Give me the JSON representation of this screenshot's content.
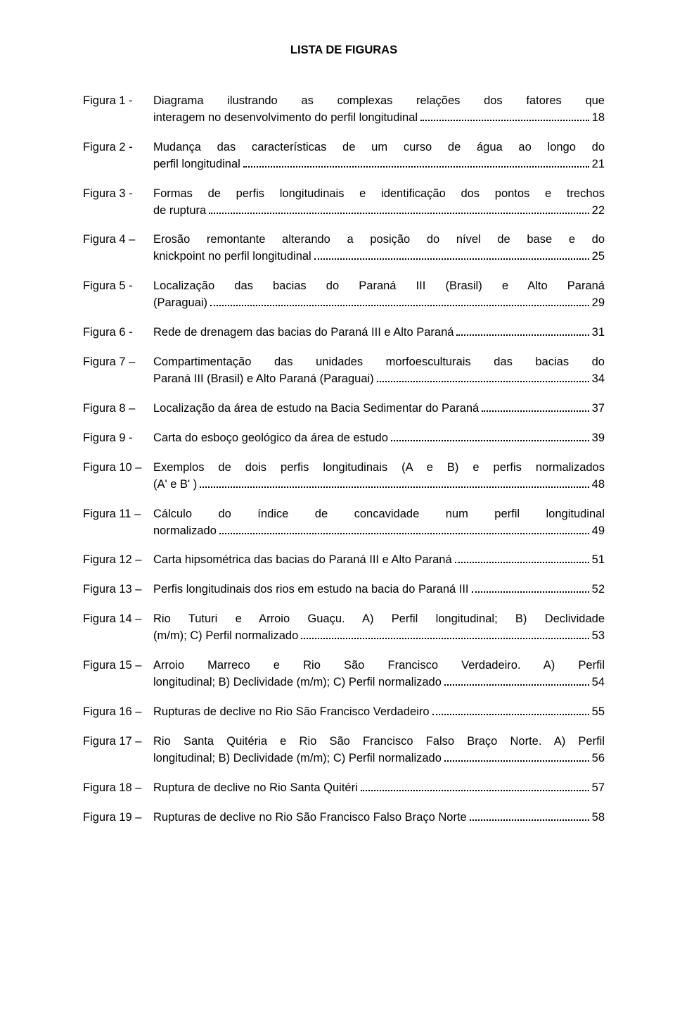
{
  "title": "LISTA DE FIGURAS",
  "entries": [
    {
      "label": "Figura 1 -",
      "pre": "Diagrama ilustrando as complexas relações dos fatores que",
      "last": "interagem no desenvolvimento do perfil longitudinal",
      "page": "18"
    },
    {
      "label": "Figura 2 -",
      "pre": "Mudança das características de um curso de água ao longo do",
      "last": "perfil longitudinal",
      "page": "21"
    },
    {
      "label": "Figura 3 -",
      "pre": "Formas de perfis longitudinais e identificação dos pontos e trechos",
      "last": "de ruptura",
      "page": "22"
    },
    {
      "label": "Figura 4 –",
      "pre": "Erosão remontante alterando a posição do nível de base e do",
      "last": "knickpoint no perfil longitudinal",
      "page": "25"
    },
    {
      "label": "Figura 5 -",
      "pre": "Localização das bacias do Paraná III (Brasil) e Alto Paraná",
      "last": "(Paraguai)",
      "page": "29"
    },
    {
      "label": "Figura 6 -",
      "pre": "",
      "last": "Rede de drenagem das bacias do Paraná III e Alto Paraná",
      "page": "31"
    },
    {
      "label": "Figura 7 –",
      "pre": "Compartimentação das unidades morfoesculturais das bacias do",
      "last": "Paraná III (Brasil) e Alto Paraná (Paraguai)",
      "page": "34"
    },
    {
      "label": "Figura 8 –",
      "pre": "",
      "last": "Localização da área de estudo na Bacia Sedimentar do Paraná",
      "page": "37"
    },
    {
      "label": "Figura 9 -",
      "pre": "",
      "last": "Carta do esboço geológico da área de estudo",
      "page": "39"
    },
    {
      "label": "Figura 10 –",
      "pre": "Exemplos de dois perfis longitudinais (A e B) e perfis normalizados",
      "last": "(A' e B' )",
      "page": "48"
    },
    {
      "label": "Figura 11 –",
      "pre": "Cálculo do índice de concavidade num perfil longitudinal",
      "last": "normalizado",
      "page": "49"
    },
    {
      "label": "Figura 12 –",
      "pre": "",
      "last": "Carta hipsométrica das bacias do Paraná III e Alto Paraná",
      "page": "51"
    },
    {
      "label": "Figura 13 –",
      "pre": "",
      "last": "Perfis longitudinais dos rios em estudo na bacia do Paraná III",
      "page": "52"
    },
    {
      "label": "Figura 14 –",
      "pre": "Rio Tuturi e Arroio Guaçu. A) Perfil longitudinal; B) Declividade",
      "last": "(m/m); C) Perfil normalizado",
      "page": "53"
    },
    {
      "label": "Figura 15 –",
      "pre": "Arroio Marreco e Rio São Francisco Verdadeiro. A) Perfil",
      "last": "longitudinal; B) Declividade (m/m); C) Perfil normalizado",
      "page": "54"
    },
    {
      "label": "Figura 16 –",
      "pre": "",
      "last": "Rupturas de declive no Rio São Francisco Verdadeiro",
      "page": "55"
    },
    {
      "label": "Figura 17 –",
      "pre": "Rio Santa Quitéria e Rio São Francisco Falso Braço Norte. A) Perfil",
      "last": "longitudinal; B) Declividade (m/m); C) Perfil normalizado",
      "page": "56"
    },
    {
      "label": "Figura 18 –",
      "pre": "",
      "last": "Ruptura de declive no Rio Santa Quitéri",
      "page": "57"
    },
    {
      "label": "Figura 19 –",
      "pre": "",
      "last": "Rupturas de declive no Rio São Francisco Falso Braço Norte",
      "page": "58"
    }
  ]
}
